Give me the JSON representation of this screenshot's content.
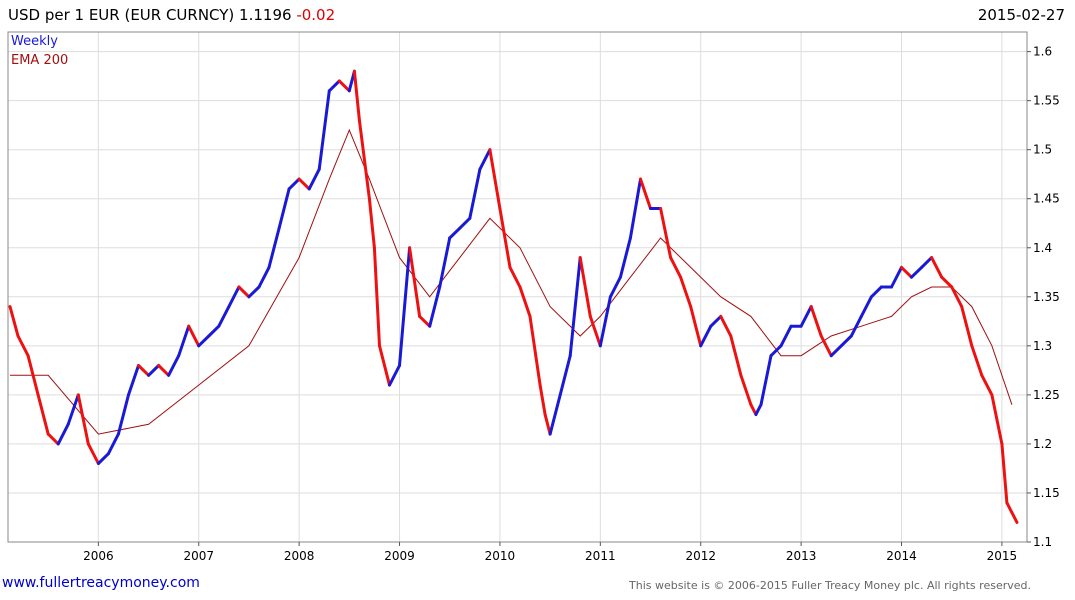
{
  "header": {
    "title": "USD per 1 EUR (EUR CURNCY) 1.1196",
    "change": "-0.02",
    "date": "2015-02-27"
  },
  "footer": {
    "link": "www.fullertreacymoney.com",
    "copyright": "This website is © 2006-2015 Fuller Treacy Money plc. All rights reserved."
  },
  "colors": {
    "up": "#1a1ad6",
    "down": "#ee1111",
    "ema": "#a01010",
    "grid": "#dddddd"
  },
  "chart_data": {
    "type": "line",
    "legend": [
      {
        "label": "Weekly",
        "color": "#1a1ad6"
      },
      {
        "label": "EMA 200",
        "color": "#a01010"
      }
    ],
    "legend_position": "top-left",
    "grid": true,
    "y_axis_side": "right",
    "ylim": [
      1.1,
      1.62
    ],
    "xlim": [
      2005.1,
      2015.25
    ],
    "x_ticks": [
      "2006",
      "2007",
      "2008",
      "2009",
      "2010",
      "2011",
      "2012",
      "2013",
      "2014",
      "2015"
    ],
    "y_ticks": [
      "1.1",
      "1.15",
      "1.2",
      "1.25",
      "1.3",
      "1.35",
      "1.4",
      "1.45",
      "1.5",
      "1.55",
      "1.6"
    ],
    "series": [
      {
        "name": "Weekly",
        "x": [
          2005.12,
          2005.2,
          2005.3,
          2005.4,
          2005.5,
          2005.6,
          2005.7,
          2005.8,
          2005.9,
          2006.0,
          2006.1,
          2006.2,
          2006.3,
          2006.4,
          2006.5,
          2006.6,
          2006.7,
          2006.8,
          2006.9,
          2007.0,
          2007.1,
          2007.2,
          2007.3,
          2007.4,
          2007.5,
          2007.6,
          2007.7,
          2007.8,
          2007.9,
          2008.0,
          2008.1,
          2008.2,
          2008.3,
          2008.4,
          2008.5,
          2008.55,
          2008.6,
          2008.7,
          2008.75,
          2008.8,
          2008.9,
          2009.0,
          2009.1,
          2009.2,
          2009.3,
          2009.4,
          2009.5,
          2009.6,
          2009.7,
          2009.8,
          2009.9,
          2010.0,
          2010.1,
          2010.2,
          2010.3,
          2010.4,
          2010.45,
          2010.5,
          2010.6,
          2010.7,
          2010.8,
          2010.9,
          2011.0,
          2011.1,
          2011.2,
          2011.3,
          2011.4,
          2011.5,
          2011.6,
          2011.7,
          2011.8,
          2011.9,
          2012.0,
          2012.1,
          2012.2,
          2012.3,
          2012.4,
          2012.5,
          2012.55,
          2012.6,
          2012.7,
          2012.8,
          2012.9,
          2013.0,
          2013.1,
          2013.2,
          2013.3,
          2013.4,
          2013.5,
          2013.6,
          2013.7,
          2013.8,
          2013.9,
          2014.0,
          2014.1,
          2014.2,
          2014.3,
          2014.4,
          2014.5,
          2014.6,
          2014.7,
          2014.8,
          2014.9,
          2015.0,
          2015.05,
          2015.1,
          2015.15
        ],
        "values": [
          1.34,
          1.31,
          1.29,
          1.25,
          1.21,
          1.2,
          1.22,
          1.25,
          1.2,
          1.18,
          1.19,
          1.21,
          1.25,
          1.28,
          1.27,
          1.28,
          1.27,
          1.29,
          1.32,
          1.3,
          1.31,
          1.32,
          1.34,
          1.36,
          1.35,
          1.36,
          1.38,
          1.42,
          1.46,
          1.47,
          1.46,
          1.48,
          1.56,
          1.57,
          1.56,
          1.58,
          1.53,
          1.45,
          1.4,
          1.3,
          1.26,
          1.28,
          1.4,
          1.33,
          1.32,
          1.36,
          1.41,
          1.42,
          1.43,
          1.48,
          1.5,
          1.44,
          1.38,
          1.36,
          1.33,
          1.26,
          1.23,
          1.21,
          1.25,
          1.29,
          1.39,
          1.33,
          1.3,
          1.35,
          1.37,
          1.41,
          1.47,
          1.44,
          1.44,
          1.39,
          1.37,
          1.34,
          1.3,
          1.32,
          1.33,
          1.31,
          1.27,
          1.24,
          1.23,
          1.24,
          1.29,
          1.3,
          1.32,
          1.32,
          1.34,
          1.31,
          1.29,
          1.3,
          1.31,
          1.33,
          1.35,
          1.36,
          1.36,
          1.38,
          1.37,
          1.38,
          1.39,
          1.37,
          1.36,
          1.34,
          1.3,
          1.27,
          1.25,
          1.2,
          1.14,
          1.13,
          1.12
        ]
      },
      {
        "name": "EMA 200",
        "x": [
          2005.12,
          2005.5,
          2006.0,
          2006.5,
          2007.0,
          2007.5,
          2008.0,
          2008.3,
          2008.5,
          2008.7,
          2009.0,
          2009.3,
          2009.6,
          2009.9,
          2010.2,
          2010.5,
          2010.8,
          2011.0,
          2011.3,
          2011.6,
          2011.9,
          2012.2,
          2012.5,
          2012.8,
          2013.0,
          2013.3,
          2013.6,
          2013.9,
          2014.1,
          2014.3,
          2014.5,
          2014.7,
          2014.9,
          2015.1
        ],
        "values": [
          1.27,
          1.27,
          1.21,
          1.22,
          1.26,
          1.3,
          1.39,
          1.47,
          1.52,
          1.47,
          1.39,
          1.35,
          1.39,
          1.43,
          1.4,
          1.34,
          1.31,
          1.33,
          1.37,
          1.41,
          1.38,
          1.35,
          1.33,
          1.29,
          1.29,
          1.31,
          1.32,
          1.33,
          1.35,
          1.36,
          1.36,
          1.34,
          1.3,
          1.24
        ]
      }
    ]
  }
}
